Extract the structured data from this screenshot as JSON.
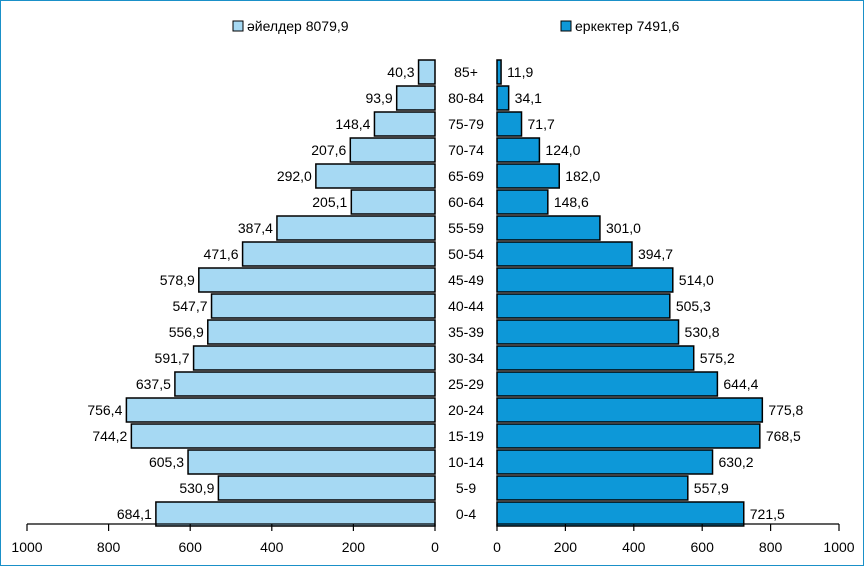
{
  "chart_data": {
    "type": "bar",
    "orientation": "horizontal-population-pyramid",
    "categories": [
      "0-4",
      "5-9",
      "10-14",
      "15-19",
      "20-24",
      "25-29",
      "30-34",
      "35-39",
      "40-44",
      "45-49",
      "50-54",
      "55-59",
      "60-64",
      "65-69",
      "70-74",
      "75-79",
      "80-84",
      "85+"
    ],
    "series": [
      {
        "name": "әйелдер 8079,9",
        "color": "#a6d9f3",
        "values": [
          684.1,
          530.9,
          605.3,
          744.2,
          756.4,
          637.5,
          591.7,
          556.9,
          547.7,
          578.9,
          471.6,
          387.4,
          205.1,
          292.0,
          207.6,
          148.4,
          93.9,
          40.3
        ],
        "labels": [
          "684,1",
          "530,9",
          "605,3",
          "744,2",
          "756,4",
          "637,5",
          "591,7",
          "556,9",
          "547,7",
          "578,9",
          "471,6",
          "387,4",
          "205,1",
          "292,0",
          "207,6",
          "148,4",
          "93,9",
          "40,3"
        ]
      },
      {
        "name": "еркектер 7491,6",
        "color": "#0d98d8",
        "values": [
          721.5,
          557.9,
          630.2,
          768.5,
          775.8,
          644.4,
          575.2,
          530.8,
          505.3,
          514.0,
          394.7,
          301.0,
          148.6,
          182.0,
          124.0,
          71.7,
          34.1,
          11.9
        ],
        "labels": [
          "721,5",
          "557,9",
          "630,2",
          "768,5",
          "775,8",
          "644,4",
          "575,2",
          "530,8",
          "505,3",
          "514,0",
          "394,7",
          "301,0",
          "148,6",
          "182,0",
          "124,0",
          "71,7",
          "34,1",
          "11,9"
        ]
      }
    ],
    "left_axis": {
      "range": [
        1000,
        0
      ],
      "ticks": [
        "1000",
        "800",
        "600",
        "400",
        "200",
        "0"
      ]
    },
    "right_axis": {
      "range": [
        0,
        1000
      ],
      "ticks": [
        "0",
        "200",
        "400",
        "600",
        "800",
        "1000"
      ]
    },
    "legend": "top",
    "grid": false
  }
}
